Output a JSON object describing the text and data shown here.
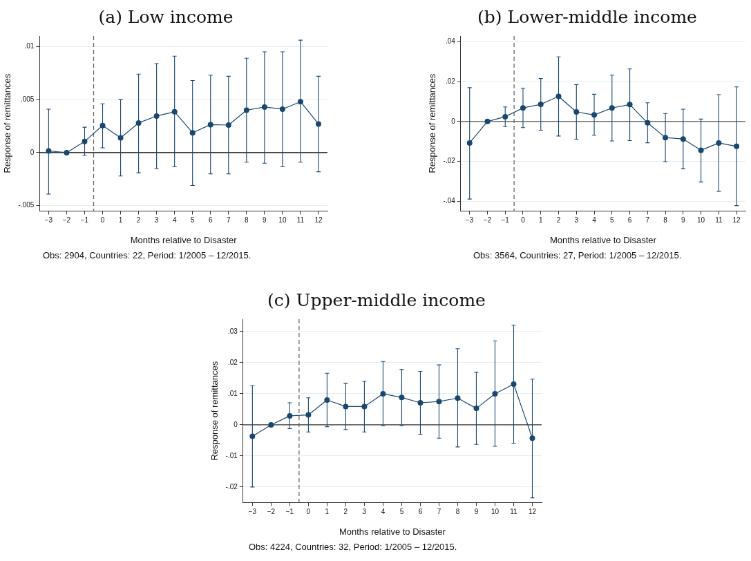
{
  "chart_data": [
    {
      "type": "line",
      "title": "(a) Low income",
      "xlabel": "Months relative to Disaster",
      "ylabel": "Response of remittances",
      "annotations": [
        "Obs: 2904, Countries: 22, Period: 1/2005 – 12/2015."
      ],
      "x": [
        -3,
        -2,
        -1,
        0,
        1,
        2,
        3,
        4,
        5,
        6,
        7,
        8,
        9,
        10,
        11,
        12
      ],
      "series": [
        {
          "color": "#1a476f",
          "values": [
            0.00016,
            0,
            0.00106,
            0.00255,
            0.0014,
            0.0028,
            0.00345,
            0.00385,
            0.00187,
            0.00264,
            0.0026,
            0.004,
            0.0043,
            0.0041,
            0.0048,
            0.0027
          ],
          "errors": [
            [
              -0.0039,
              0.0041
            ],
            [
              0,
              0
            ],
            [
              -0.00025,
              0.0024
            ],
            [
              0.00045,
              0.0046
            ],
            [
              -0.0022,
              0.005
            ],
            [
              -0.0019,
              0.0074
            ],
            [
              -0.0015,
              0.0084
            ],
            [
              -0.0013,
              0.0091
            ],
            [
              -0.0031,
              0.0068
            ],
            [
              -0.002,
              0.0073
            ],
            [
              -0.002,
              0.0072
            ],
            [
              -0.0009,
              0.0089
            ],
            [
              -0.001,
              0.0095
            ],
            [
              -0.0013,
              0.0095
            ],
            [
              -0.0009,
              0.0106
            ],
            [
              -0.0018,
              0.0072
            ]
          ]
        }
      ],
      "xlim": [
        -3.5,
        12.5
      ],
      "xticks": [
        {
          "value": -3,
          "label": "−3"
        },
        {
          "value": -2,
          "label": "−2"
        },
        {
          "value": -1,
          "label": "−1"
        },
        0,
        1,
        2,
        3,
        4,
        5,
        6,
        7,
        8,
        9,
        10,
        11,
        12
      ],
      "ylim": [
        -0.0055,
        0.011
      ],
      "yticks": [
        {
          "value": -0.005,
          "label": "-.005"
        },
        {
          "value": 0,
          "label": "0"
        },
        {
          "value": 0.005,
          "label": ".005"
        },
        {
          "value": 0.01,
          "label": ".01"
        }
      ],
      "ref_lines": [
        {
          "axis": "y",
          "value": 0,
          "color": "#000000",
          "line_style": "solid"
        },
        {
          "axis": "x",
          "value": -0.5,
          "color": "#666666",
          "line_style": "dashed"
        }
      ],
      "grid": "y",
      "marker": "circle",
      "line_style": "solid",
      "legend": false
    },
    {
      "type": "line",
      "title": "(b) Lower-middle income",
      "xlabel": "Months relative to Disaster",
      "ylabel": "Response of remittances",
      "annotations": [
        "Obs: 3564, Countries: 27, Period: 1/2005 – 12/2015."
      ],
      "x": [
        -3,
        -2,
        -1,
        0,
        1,
        2,
        3,
        4,
        5,
        6,
        7,
        8,
        9,
        10,
        11,
        12
      ],
      "series": [
        {
          "color": "#1a476f",
          "values": [
            -0.0108,
            0,
            0.0024,
            0.0068,
            0.0086,
            0.0126,
            0.0048,
            0.0033,
            0.0068,
            0.0085,
            -0.0007,
            -0.0081,
            -0.0088,
            -0.0145,
            -0.0108,
            -0.0125
          ],
          "errors": [
            [
              -0.039,
              0.017
            ],
            [
              0,
              0
            ],
            [
              -0.0026,
              0.0073
            ],
            [
              -0.0031,
              0.0167
            ],
            [
              -0.0044,
              0.0216
            ],
            [
              -0.0073,
              0.0325
            ],
            [
              -0.0089,
              0.0185
            ],
            [
              -0.0069,
              0.0137
            ],
            [
              -0.0098,
              0.0233
            ],
            [
              -0.0096,
              0.0264
            ],
            [
              -0.0107,
              0.0094
            ],
            [
              -0.0202,
              0.004
            ],
            [
              -0.0238,
              0.0062
            ],
            [
              -0.0304,
              0.0012
            ],
            [
              -0.0351,
              0.0135
            ],
            [
              -0.0423,
              0.0174
            ]
          ]
        }
      ],
      "xlim": [
        -3.5,
        12.5
      ],
      "xticks": [
        {
          "value": -3,
          "label": "−3"
        },
        {
          "value": -2,
          "label": "−2"
        },
        {
          "value": -1,
          "label": "−1"
        },
        0,
        1,
        2,
        3,
        4,
        5,
        6,
        7,
        8,
        9,
        10,
        11,
        12
      ],
      "ylim": [
        -0.045,
        0.043
      ],
      "yticks": [
        {
          "value": -0.04,
          "label": "-.04"
        },
        {
          "value": -0.02,
          "label": "-.02"
        },
        {
          "value": 0,
          "label": "0"
        },
        {
          "value": 0.02,
          "label": ".02"
        },
        {
          "value": 0.04,
          "label": ".04"
        }
      ],
      "ref_lines": [
        {
          "axis": "y",
          "value": 0,
          "color": "#555555",
          "line_style": "solid"
        },
        {
          "axis": "x",
          "value": -0.5,
          "color": "#666666",
          "line_style": "dashed"
        }
      ],
      "grid": "y",
      "marker": "circle",
      "line_style": "solid",
      "legend": false
    },
    {
      "type": "line",
      "title": "(c) Upper-middle income",
      "xlabel": "Months relative to Disaster",
      "ylabel": "Response of remittances",
      "annotations": [
        "Obs: 4224, Countries: 32, Period: 1/2005 – 12/2015."
      ],
      "x": [
        -3,
        -2,
        -1,
        0,
        1,
        2,
        3,
        4,
        5,
        6,
        7,
        8,
        9,
        10,
        11,
        12
      ],
      "series": [
        {
          "color": "#1a476f",
          "values": [
            -0.0037,
            0,
            0.0029,
            0.0032,
            0.008,
            0.0059,
            0.0059,
            0.01,
            0.0088,
            0.0071,
            0.0075,
            0.0086,
            0.0053,
            0.01,
            0.0131,
            -0.0043
          ],
          "errors": [
            [
              -0.02,
              0.0126
            ],
            [
              0,
              0
            ],
            [
              -0.0012,
              0.0071
            ],
            [
              -0.0023,
              0.0087
            ],
            [
              -0.0006,
              0.0166
            ],
            [
              -0.0015,
              0.0134
            ],
            [
              -0.0023,
              0.014
            ],
            [
              -0.0003,
              0.0204
            ],
            [
              -0.0002,
              0.0178
            ],
            [
              -0.003,
              0.0172
            ],
            [
              -0.0043,
              0.0193
            ],
            [
              -0.0071,
              0.0245
            ],
            [
              -0.0063,
              0.0169
            ],
            [
              -0.0069,
              0.027
            ],
            [
              -0.0059,
              0.0321
            ],
            [
              -0.0235,
              0.0147
            ]
          ]
        }
      ],
      "xlim": [
        -3.5,
        12.5
      ],
      "xticks": [
        {
          "value": -3,
          "label": "−3"
        },
        {
          "value": -2,
          "label": "−2"
        },
        {
          "value": -1,
          "label": "−1"
        },
        0,
        1,
        2,
        3,
        4,
        5,
        6,
        7,
        8,
        9,
        10,
        11,
        12
      ],
      "ylim": [
        -0.025,
        0.034
      ],
      "yticks": [
        {
          "value": -0.02,
          "label": "-.02"
        },
        {
          "value": -0.01,
          "label": "-.01"
        },
        {
          "value": 0,
          "label": "0"
        },
        {
          "value": 0.01,
          "label": ".01"
        },
        {
          "value": 0.02,
          "label": ".02"
        },
        {
          "value": 0.03,
          "label": ".03"
        }
      ],
      "ref_lines": [
        {
          "axis": "y",
          "value": 0,
          "color": "#333333",
          "line_style": "solid"
        },
        {
          "axis": "x",
          "value": -0.5,
          "color": "#666666",
          "line_style": "dashed"
        }
      ],
      "grid": "y",
      "marker": "circle",
      "line_style": "solid",
      "legend": false
    }
  ]
}
